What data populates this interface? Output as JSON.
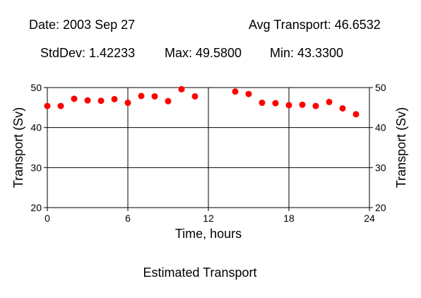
{
  "header": {
    "date": "Date: 2003 Sep 27",
    "avg": "Avg Transport: 46.6532",
    "stddev": "StdDev: 1.42233",
    "max": "Max: 49.5800",
    "min": "Min: 43.3300"
  },
  "chart_data": {
    "type": "scatter",
    "title": "Estimated Transport",
    "xlabel": "Time, hours",
    "ylabel": "Transport (Sv)",
    "ylabel_right": "Transport (Sv)",
    "xlim": [
      0,
      24
    ],
    "ylim": [
      20,
      50
    ],
    "xticks": [
      0,
      6,
      12,
      18,
      24
    ],
    "yticks": [
      20,
      30,
      40,
      50
    ],
    "grid": true,
    "marker_color": "#ff0000",
    "series": [
      {
        "x": [
          0,
          1,
          2,
          3,
          4,
          5,
          6,
          7,
          8,
          9,
          10,
          11,
          14,
          15,
          16,
          17,
          18,
          19,
          20,
          21,
          22,
          23
        ],
        "y": [
          45.4,
          45.4,
          47.2,
          46.8,
          46.7,
          47.1,
          46.2,
          47.9,
          47.8,
          46.6,
          49.58,
          47.8,
          49.0,
          48.4,
          46.2,
          46.1,
          45.6,
          45.7,
          45.4,
          46.4,
          44.8,
          43.33
        ]
      }
    ]
  }
}
